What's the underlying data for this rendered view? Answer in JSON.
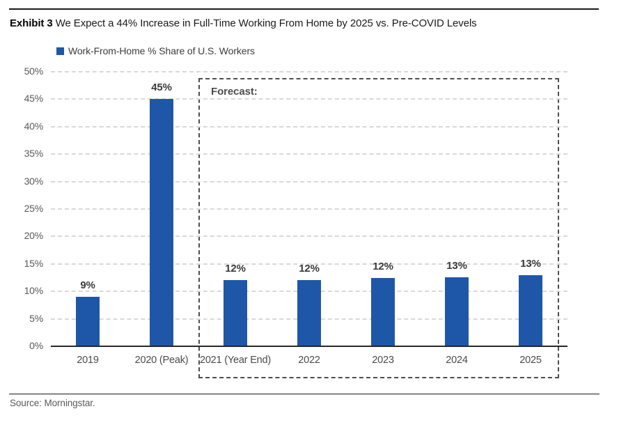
{
  "header": {
    "exhibit_label": "Exhibit 3",
    "title": "We Expect a 44% Increase in Full-Time Working From Home by 2025 vs. Pre-COVID Levels"
  },
  "legend": {
    "label": "Work-From-Home % Share of U.S. Workers",
    "swatch_color": "#1F57A8"
  },
  "footer": {
    "source": "Source: Morningstar."
  },
  "chart_data": {
    "type": "bar",
    "title": "We Expect a 44% Increase in Full-Time Working From Home by 2025 vs. Pre-COVID Levels",
    "series_name": "Work-From-Home % Share of U.S. Workers",
    "categories": [
      "2019",
      "2020 (Peak)",
      "2021 (Year End)",
      "2022",
      "2023",
      "2024",
      "2025"
    ],
    "values": [
      9,
      45,
      12,
      12,
      12.4,
      12.6,
      13
    ],
    "bar_labels": [
      "9%",
      "45%",
      "12%",
      "12%",
      "12%",
      "13%",
      "13%"
    ],
    "xlabel": "",
    "ylabel": "",
    "ylim": [
      0,
      50
    ],
    "ytick_step": 5,
    "ytick_labels": [
      "0%",
      "5%",
      "10%",
      "15%",
      "20%",
      "25%",
      "30%",
      "35%",
      "40%",
      "45%",
      "50%"
    ],
    "grid": "horizontal-dashed",
    "legend_position": "top-left",
    "bar_color": "#1F57A8",
    "annotation": {
      "label": "Forecast:",
      "style": "dashed-box",
      "covers_categories": [
        "2021 (Year End)",
        "2022",
        "2023",
        "2024",
        "2025"
      ]
    }
  }
}
